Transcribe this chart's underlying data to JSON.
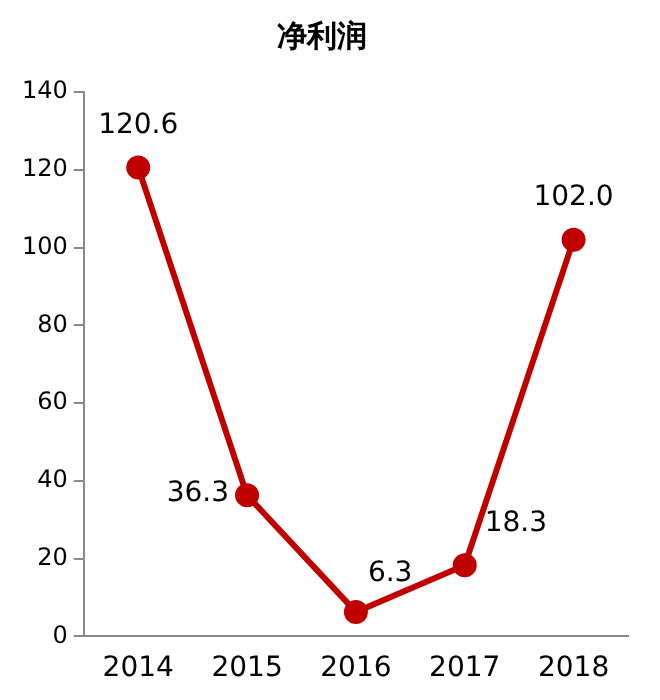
{
  "chart_data": {
    "type": "line",
    "title": "净利润",
    "categories": [
      "2014",
      "2015",
      "2016",
      "2017",
      "2018"
    ],
    "series": [
      {
        "color": "#c00000",
        "values": [
          120.6,
          36.3,
          6.3,
          18.3,
          102.0
        ],
        "value_labels": [
          "120.6",
          "36.3",
          "6.3",
          "18.3",
          "102.0"
        ]
      }
    ],
    "ylim": [
      0,
      140
    ],
    "yticks": [
      0,
      20,
      40,
      60,
      80,
      100,
      120,
      140
    ],
    "grid": false,
    "legend": false,
    "marker": "circle",
    "line_style": "solid"
  }
}
